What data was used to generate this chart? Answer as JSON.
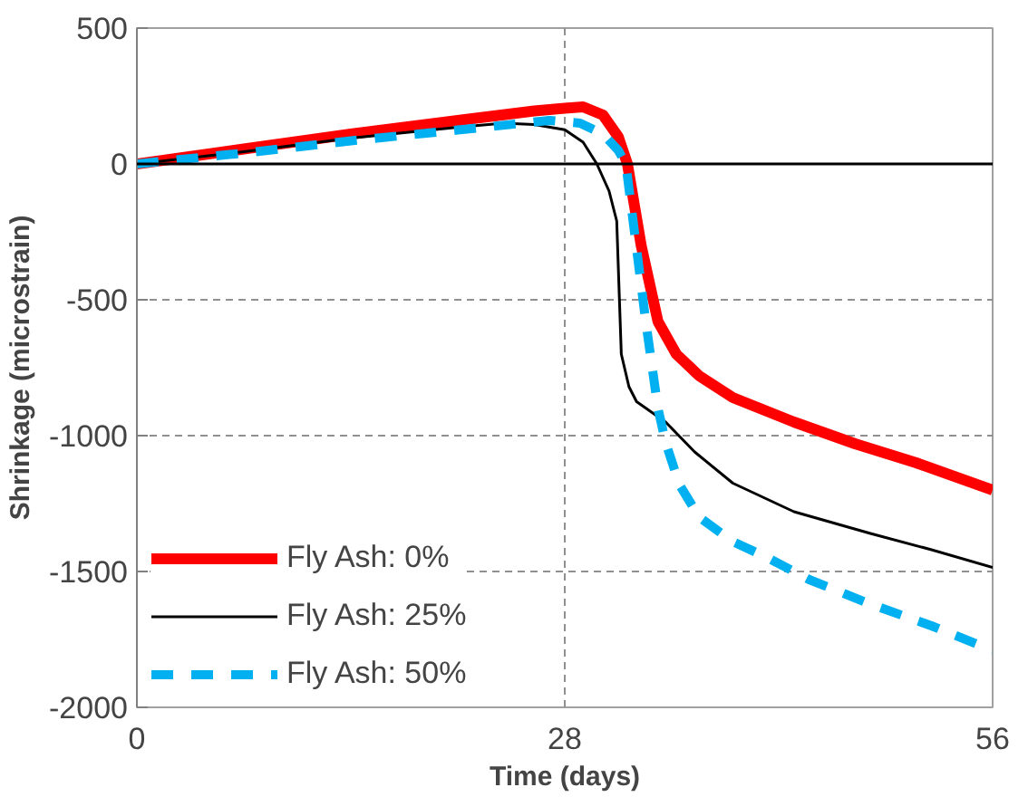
{
  "chart_data": {
    "type": "line",
    "xlabel": "Time (days)",
    "ylabel": "Shrinkage (microstrain)",
    "xlim": [
      0,
      56
    ],
    "xticks": [
      0,
      28,
      56
    ],
    "ylim": [
      -2000,
      500
    ],
    "yticks": [
      500,
      0,
      -500,
      -1000,
      -1500,
      -2000
    ],
    "grid": true,
    "legend": "bottom left",
    "ref_lines": [
      {
        "axis": "y",
        "value": 0,
        "label": null,
        "color": "#000000",
        "line_style": "solid"
      }
    ],
    "series": [
      {
        "name": "Fly Ash: 0%",
        "color": "#ff0000",
        "line_style": "solid",
        "x": [
          0,
          7,
          14,
          21,
          26,
          28,
          29.2,
          30.5,
          31.5,
          32.1,
          33,
          34.1,
          35.3,
          36.8,
          39,
          43,
          47,
          51,
          56
        ],
        "values": [
          0,
          55,
          110,
          160,
          195,
          205,
          210,
          180,
          100,
          0,
          -300,
          -580,
          -700,
          -780,
          -860,
          -950,
          -1030,
          -1100,
          -1200
        ]
      },
      {
        "name": "Fly Ash: 25%",
        "color": "#000000",
        "line_style": "solid",
        "x": [
          0,
          7,
          14,
          21,
          24,
          26,
          28,
          29.2,
          30.1,
          30.9,
          31.4,
          31.7,
          32.2,
          32.7,
          34.6,
          36.5,
          39,
          43,
          48,
          52,
          56
        ],
        "values": [
          0,
          45,
          95,
          135,
          150,
          145,
          126,
          80,
          0,
          -100,
          -210,
          -700,
          -820,
          -875,
          -950,
          -1060,
          -1175,
          -1280,
          -1360,
          -1420,
          -1485
        ]
      },
      {
        "name": "Fly Ash: 50%",
        "color": "#00b0f0",
        "line_style": "dashed",
        "x": [
          0,
          7,
          14,
          21,
          27,
          29,
          30.5,
          31.5,
          32,
          33.3,
          34.1,
          34.6,
          35.5,
          36.8,
          39,
          41.3,
          44,
          48,
          52,
          56
        ],
        "values": [
          0,
          40,
          85,
          125,
          160,
          150,
          110,
          50,
          0,
          -580,
          -900,
          -1025,
          -1180,
          -1300,
          -1390,
          -1450,
          -1530,
          -1620,
          -1700,
          -1790
        ]
      }
    ]
  }
}
